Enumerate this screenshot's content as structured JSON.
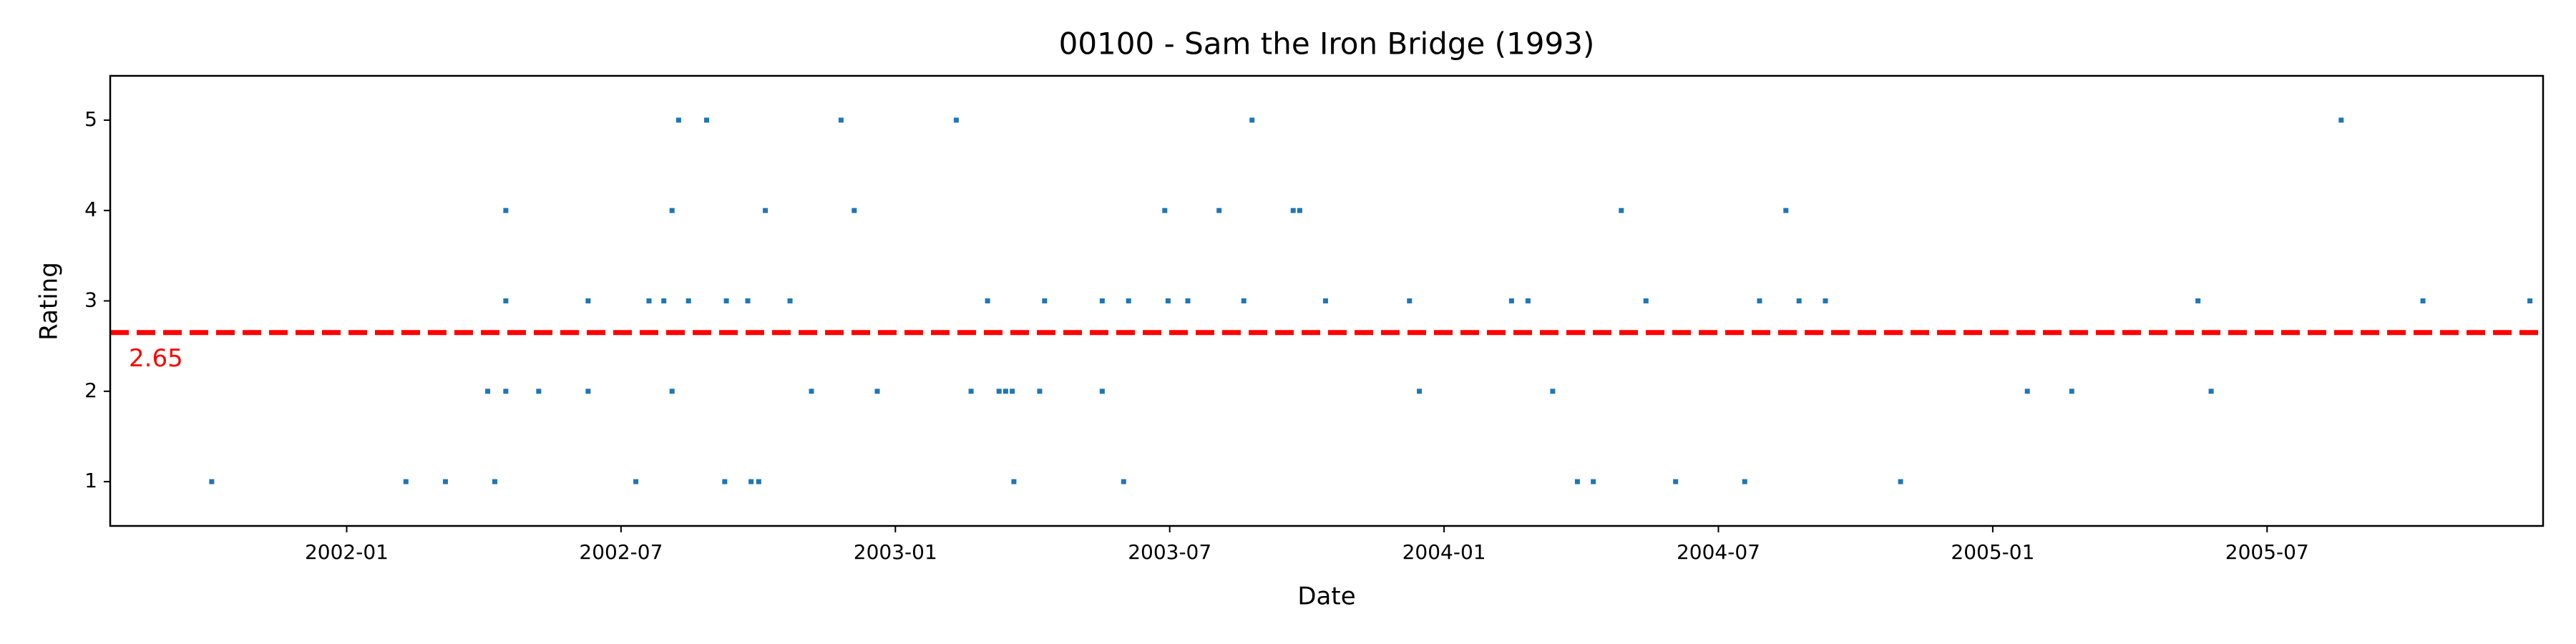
{
  "chart_data": {
    "type": "scatter",
    "title": "00100 - Sam the Iron Bridge (1993)",
    "x_label": "Date",
    "y_label": "Rating",
    "color": "#1f77b4",
    "xlim": [
      2001.569,
      2006.003
    ],
    "ylim": [
      0.51,
      5.49
    ],
    "xticks": [
      {
        "value": 2002.0,
        "label": "2002-01"
      },
      {
        "value": 2002.5,
        "label": "2002-07"
      },
      {
        "value": 2003.0,
        "label": "2003-01"
      },
      {
        "value": 2003.5,
        "label": "2003-07"
      },
      {
        "value": 2004.0,
        "label": "2004-01"
      },
      {
        "value": 2004.5,
        "label": "2004-07"
      },
      {
        "value": 2005.0,
        "label": "2005-01"
      },
      {
        "value": 2005.5,
        "label": "2005-07"
      }
    ],
    "yticks": [
      1,
      2,
      3,
      4,
      5
    ],
    "hline": {
      "value": 2.65,
      "color": "#ff0000"
    },
    "x": [
      2001.754,
      2002.108,
      2002.18,
      2002.257,
      2002.27,
      2002.29,
      2002.29,
      2002.29,
      2002.35,
      2002.44,
      2002.44,
      2002.527,
      2002.551,
      2002.578,
      2002.593,
      2002.593,
      2002.605,
      2002.623,
      2002.656,
      2002.689,
      2002.692,
      2002.731,
      2002.737,
      2002.751,
      2002.763,
      2002.808,
      2002.847,
      2002.901,
      2002.925,
      2002.967,
      2003.111,
      2003.138,
      2003.168,
      2003.189,
      2003.201,
      2003.213,
      2003.216,
      2003.263,
      2003.272,
      2003.377,
      2003.377,
      2003.416,
      2003.425,
      2003.491,
      2003.497,
      2003.533,
      2003.59,
      2003.635,
      2003.65,
      2003.725,
      2003.737,
      2003.784,
      2003.937,
      2003.955,
      2004.123,
      2004.153,
      2004.198,
      2004.243,
      2004.272,
      2004.323,
      2004.368,
      2004.422,
      2004.548,
      2004.575,
      2004.623,
      2004.647,
      2004.695,
      2004.832,
      2005.063,
      2005.144,
      2005.374,
      2005.398,
      2005.635,
      2005.784,
      2005.979
    ],
    "values": [
      1,
      1,
      1,
      2,
      1,
      2,
      3,
      4,
      2,
      2,
      3,
      1,
      3,
      3,
      2,
      4,
      5,
      3,
      5,
      1,
      3,
      3,
      1,
      1,
      4,
      3,
      2,
      5,
      4,
      2,
      5,
      2,
      3,
      2,
      2,
      2,
      1,
      2,
      3,
      2,
      3,
      1,
      3,
      4,
      3,
      3,
      4,
      3,
      5,
      4,
      4,
      3,
      3,
      2,
      3,
      3,
      2,
      1,
      1,
      4,
      3,
      1,
      1,
      3,
      4,
      3,
      3,
      1,
      2,
      2,
      3,
      2,
      5,
      3,
      3
    ]
  }
}
